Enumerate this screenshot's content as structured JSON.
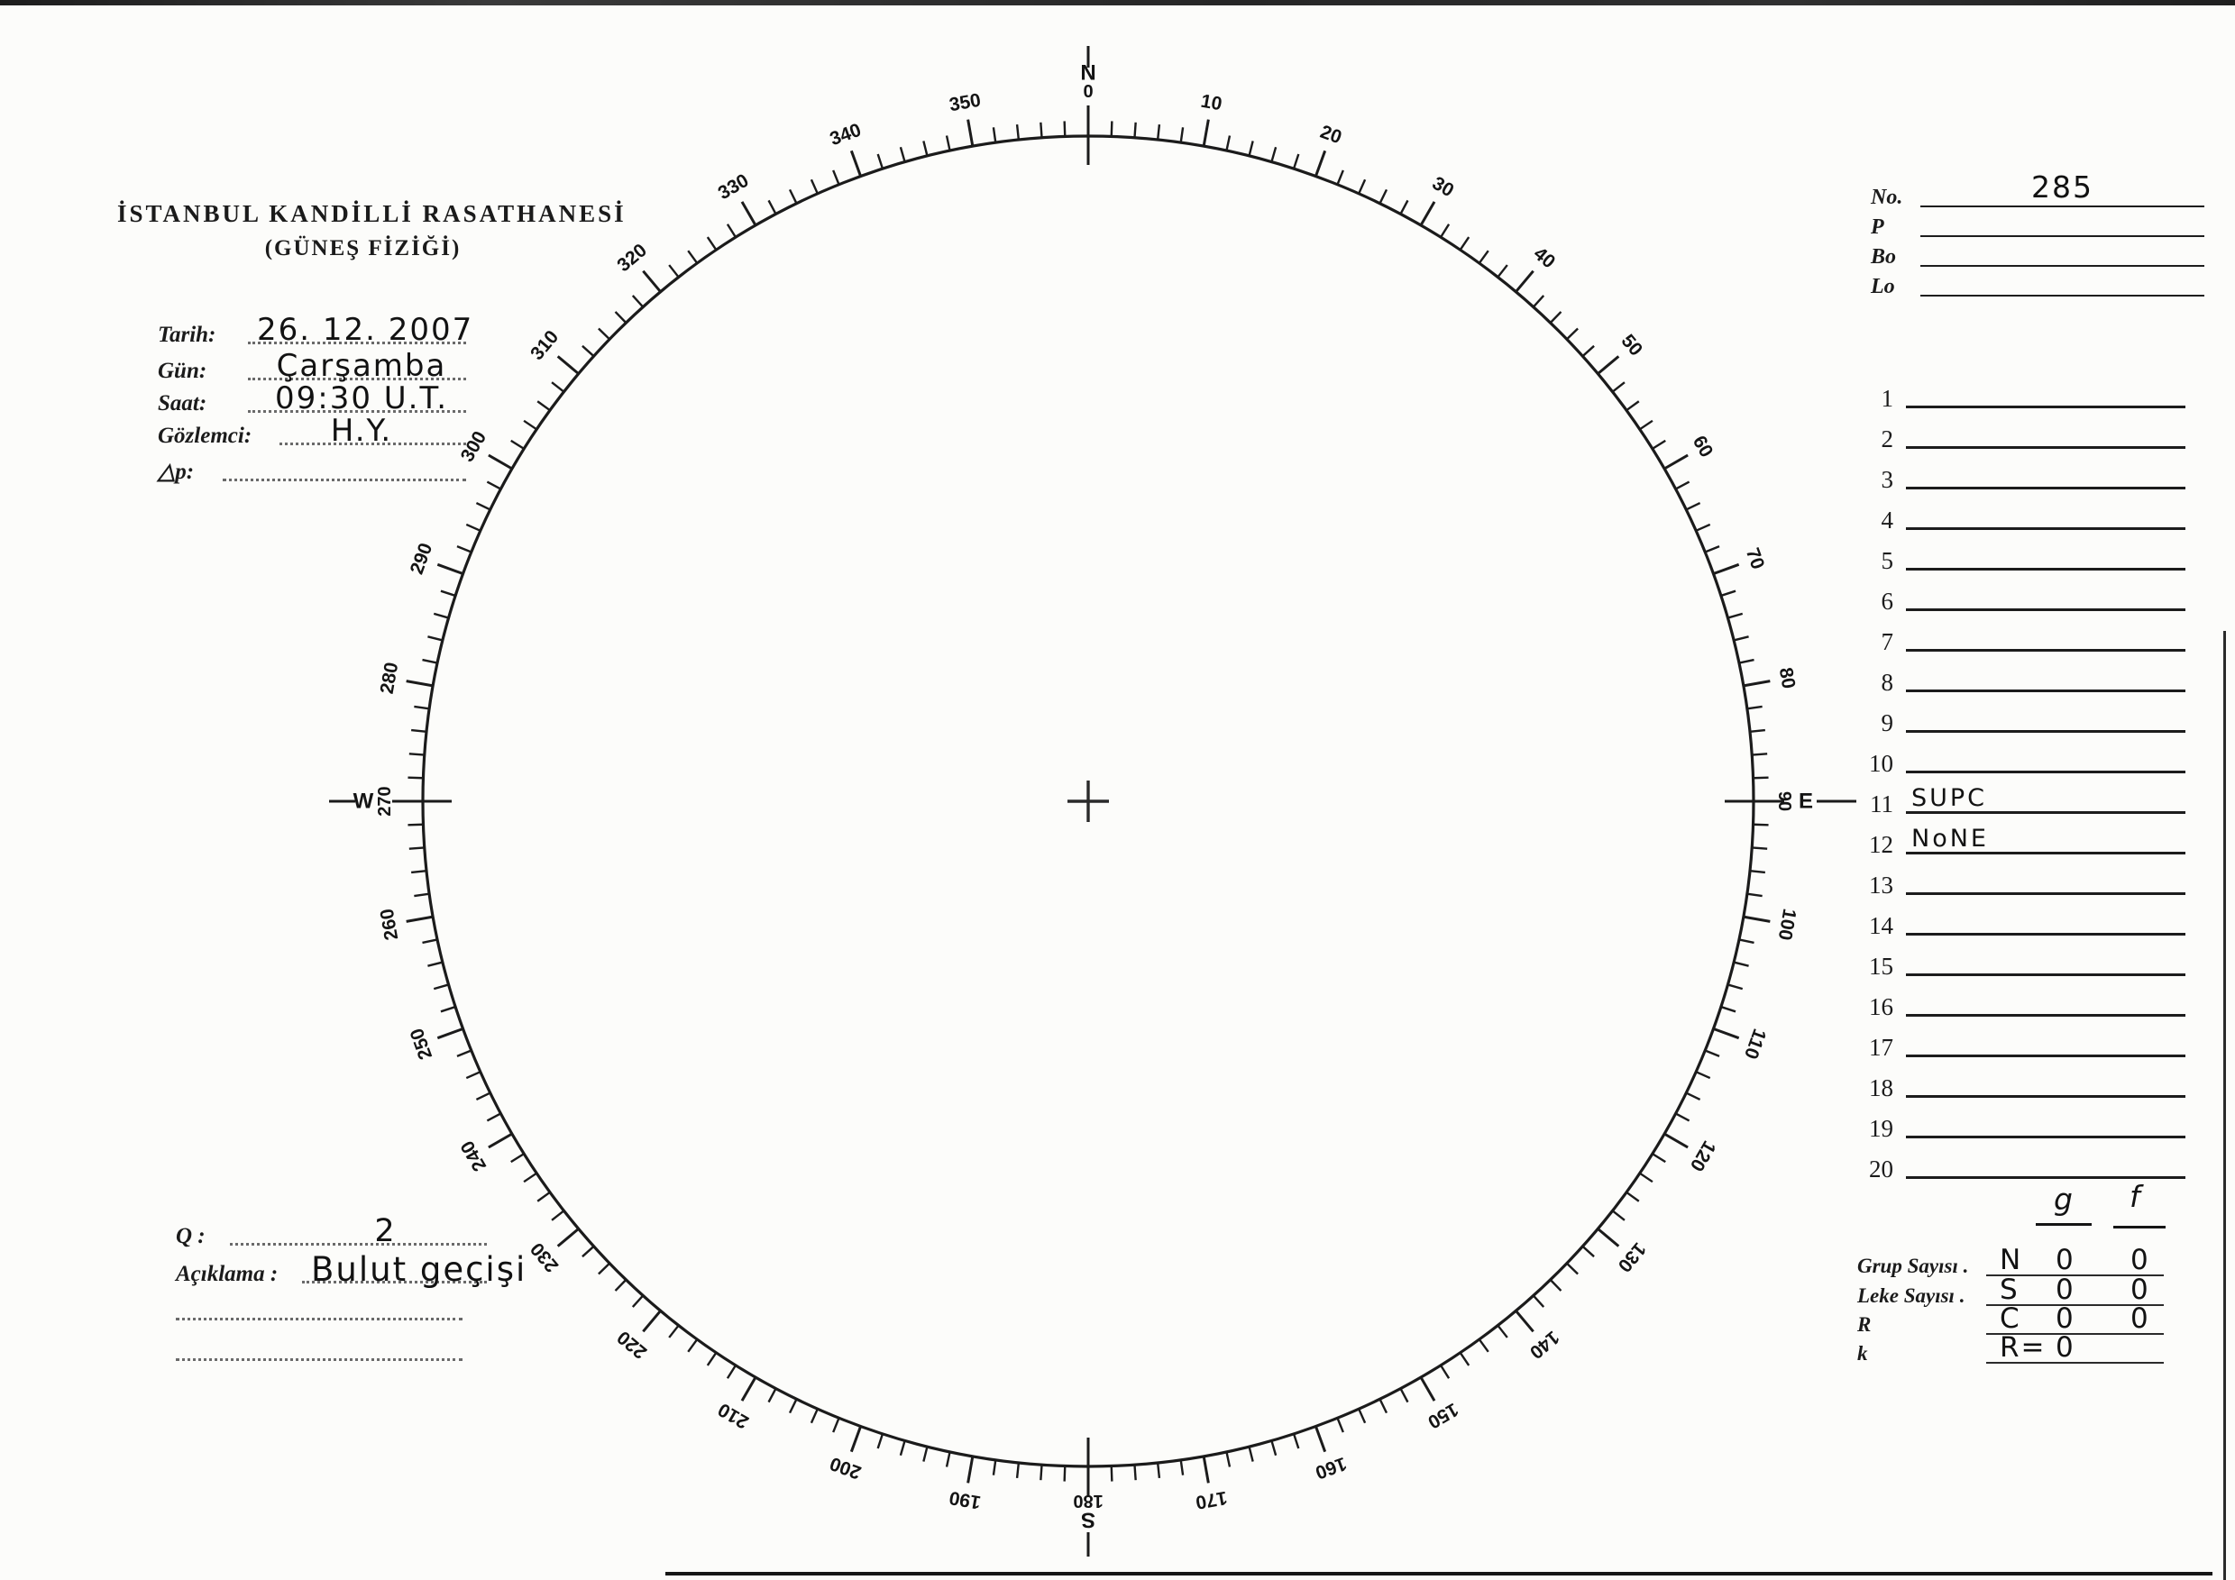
{
  "observatory": {
    "name_line1": "İSTANBUL KANDİLLİ RASATHANESİ",
    "name_line2": "(GÜNEŞ FİZİĞİ)"
  },
  "obs_fields": [
    {
      "label": "Tarih:",
      "value": "26. 12. 2007"
    },
    {
      "label": "Gün:",
      "value": "Çarşamba"
    },
    {
      "label": "Saat:",
      "value": "09:30 U.T."
    },
    {
      "label": "Gözlemci:",
      "value": "H.Y."
    },
    {
      "label": "△p:",
      "value": ""
    }
  ],
  "quality_field": {
    "label": "Q :",
    "value": "2"
  },
  "remark_field": {
    "label": "Açıklama :",
    "value": "Bulut geçişi"
  },
  "extra_blank_lines": 2,
  "id_fields": [
    {
      "label": "No.",
      "value": "285"
    },
    {
      "label": "P",
      "value": ""
    },
    {
      "label": "Bo",
      "value": ""
    },
    {
      "label": "Lo",
      "value": ""
    }
  ],
  "group_list": {
    "rows": [
      {
        "num": "1",
        "value": ""
      },
      {
        "num": "2",
        "value": ""
      },
      {
        "num": "3",
        "value": ""
      },
      {
        "num": "4",
        "value": ""
      },
      {
        "num": "5",
        "value": ""
      },
      {
        "num": "6",
        "value": ""
      },
      {
        "num": "7",
        "value": ""
      },
      {
        "num": "8",
        "value": ""
      },
      {
        "num": "9",
        "value": ""
      },
      {
        "num": "10",
        "value": ""
      },
      {
        "num": "11",
        "value": "SUPC"
      },
      {
        "num": "12",
        "value": "NoNE"
      },
      {
        "num": "13",
        "value": ""
      },
      {
        "num": "14",
        "value": ""
      },
      {
        "num": "15",
        "value": ""
      },
      {
        "num": "16",
        "value": ""
      },
      {
        "num": "17",
        "value": ""
      },
      {
        "num": "18",
        "value": ""
      },
      {
        "num": "19",
        "value": ""
      },
      {
        "num": "20",
        "value": ""
      }
    ]
  },
  "counts": {
    "col_g": "g",
    "col_f": "f",
    "rows": [
      {
        "label": "Grup Sayısı .",
        "pre": "N",
        "g": "0",
        "f": "0"
      },
      {
        "label": "Leke Sayısı .",
        "pre": "S",
        "g": "0",
        "f": "0"
      },
      {
        "label": "R",
        "pre": "C",
        "g": "0",
        "f": "0"
      },
      {
        "label": "k",
        "pre": "R=",
        "g": "0",
        "f": ""
      }
    ]
  },
  "compass": {
    "tick_step_deg": 2,
    "major_step_deg": 10,
    "degree_labels": [
      "10",
      "20",
      "30",
      "40",
      "50",
      "60",
      "70",
      "80",
      "100",
      "110",
      "120",
      "130",
      "140",
      "150",
      "160",
      "170",
      "190",
      "200",
      "210",
      "220",
      "230",
      "240",
      "250",
      "260",
      "280",
      "290",
      "300",
      "310",
      "320",
      "330",
      "340",
      "350"
    ],
    "cardinal_points": [
      {
        "deg": 0,
        "degree_label": "0",
        "letter": "N"
      },
      {
        "deg": 90,
        "degree_label": "90",
        "letter": "E"
      },
      {
        "deg": 180,
        "degree_label": "180",
        "letter": "S"
      },
      {
        "deg": 270,
        "degree_label": "270",
        "letter": "W"
      }
    ]
  },
  "ink_color": "#1b1b1b"
}
